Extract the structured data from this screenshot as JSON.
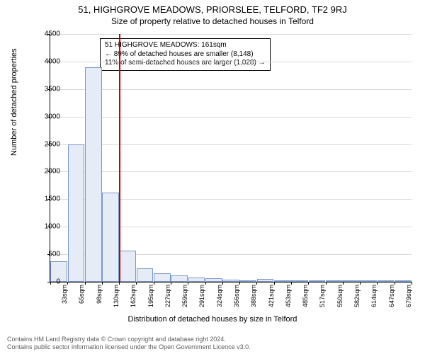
{
  "title_line1": "51, HIGHGROVE MEADOWS, PRIORSLEE, TELFORD, TF2 9RJ",
  "title_line2": "Size of property relative to detached houses in Telford",
  "y_axis_title": "Number of detached properties",
  "x_axis_title": "Distribution of detached houses by size in Telford",
  "footer_line1": "Contains HM Land Registry data © Crown copyright and database right 2024.",
  "footer_line2": "Contains public sector information licensed under the Open Government Licence v3.0.",
  "chart": {
    "type": "histogram",
    "ylim": [
      0,
      4500
    ],
    "ytick_step": 500,
    "background_color": "#ffffff",
    "grid_color": "#d9d9d9",
    "bar_fill": "#e5ecf6",
    "bar_stroke": "#7a98c9",
    "highlight_color": "#cc0000",
    "highlight_x_index": 4,
    "categories": [
      "33sqm",
      "65sqm",
      "98sqm",
      "130sqm",
      "162sqm",
      "195sqm",
      "227sqm",
      "259sqm",
      "291sqm",
      "324sqm",
      "356sqm",
      "388sqm",
      "421sqm",
      "453sqm",
      "485sqm",
      "517sqm",
      "550sqm",
      "582sqm",
      "614sqm",
      "647sqm",
      "679sqm"
    ],
    "values": [
      370,
      2500,
      3900,
      1620,
      570,
      245,
      160,
      115,
      75,
      60,
      40,
      20,
      50,
      8,
      6,
      5,
      5,
      4,
      3,
      2,
      2
    ],
    "x_tick_fontsize": 9,
    "y_tick_fontsize": 10
  },
  "annotation": {
    "line1": "51 HIGHGROVE MEADOWS: 161sqm",
    "line2": "← 89% of detached houses are smaller (8,148)",
    "line3": "11% of semi-detached houses are larger (1,028) →"
  }
}
